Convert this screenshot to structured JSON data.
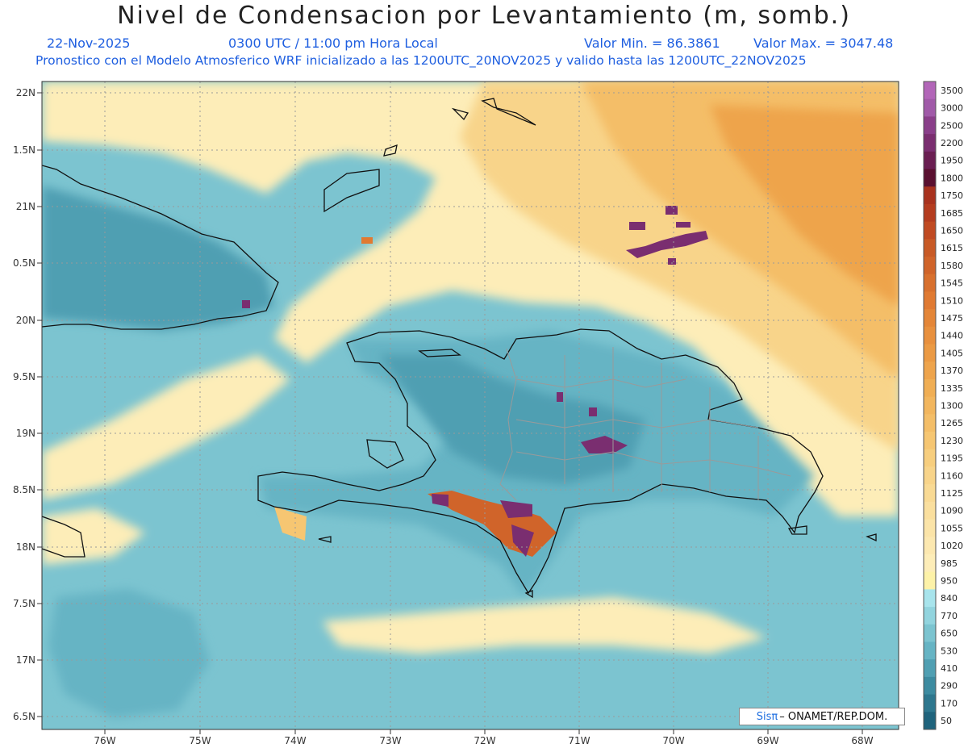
{
  "header": {
    "title": "Nivel de Condensacion por Levantamiento (m, somb.)",
    "date": "22-Nov-2025",
    "time": "0300 UTC / 11:00 pm Hora Local",
    "valor_min": "Valor Min. = 86.3861",
    "valor_max": "Valor Max. = 3047.48",
    "subtitle": "Pronostico con el Modelo Atmosferico WRF inicializado a las 1200UTC_20NOV2025 y valido hasta las  1200UTC_22NOV2025"
  },
  "map": {
    "lon_range": [
      -76.7,
      -67.5
    ],
    "lat_range": [
      6.4,
      22.1
    ],
    "lat_ticks": [
      "22N",
      "1.5N",
      "21N",
      "0.5N",
      "20N",
      "9.5N",
      "19N",
      "8.5N",
      "18N",
      "7.5N",
      "17N",
      "6.5N"
    ],
    "lon_ticks": [
      "76W",
      "75W",
      "74W",
      "73W",
      "72W",
      "71W",
      "70W",
      "69W",
      "68W"
    ]
  },
  "legend": {
    "levels": [
      "3500",
      "3000",
      "2500",
      "2200",
      "1950",
      "1800",
      "1750",
      "1685",
      "1650",
      "1615",
      "1580",
      "1545",
      "1510",
      "1475",
      "1440",
      "1405",
      "1370",
      "1335",
      "1300",
      "1265",
      "1230",
      "1195",
      "1160",
      "1125",
      "1090",
      "1055",
      "1020",
      "985",
      "950",
      "840",
      "770",
      "650",
      "530",
      "410",
      "290",
      "170",
      "50"
    ],
    "colors": [
      "#b266b8",
      "#a05aa8",
      "#8a3f8a",
      "#7a2e70",
      "#6a1e52",
      "#5a1030",
      "#a8321e",
      "#b43c1f",
      "#c04a22",
      "#c85a26",
      "#d0642a",
      "#d8702e",
      "#e07a32",
      "#e48638",
      "#e8903e",
      "#eb9a44",
      "#eea44c",
      "#f0ae54",
      "#f2b65e",
      "#f4be68",
      "#f6c672",
      "#f7ce7e",
      "#f8d48a",
      "#f9da94",
      "#fadf9e",
      "#fbe4a8",
      "#fce8b0",
      "#fdedb8",
      "#fdf2a8",
      "#a8e4ec",
      "#92d4de",
      "#7cc4d0",
      "#66b4c4",
      "#509fb2",
      "#3d8ba0",
      "#2e778e",
      "#1f637c"
    ]
  },
  "credit": {
    "brand": "Sisπ",
    "text": "– ONAMET/REP.DOM."
  }
}
